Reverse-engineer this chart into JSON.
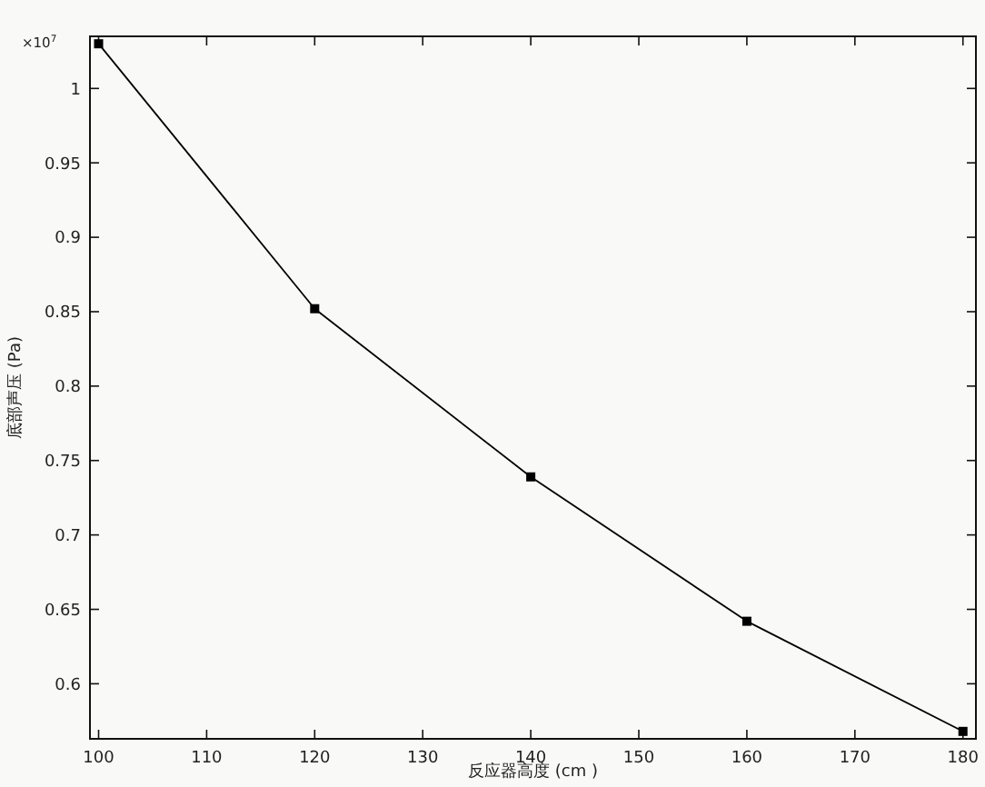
{
  "chart_data": {
    "type": "line",
    "xlabel": "反应器高度 (cm )",
    "ylabel": "底部声压 (Pa)",
    "annotations": [
      "×10$^{7}$"
    ],
    "x": [
      100,
      120,
      140,
      160,
      180
    ],
    "series": [
      {
        "color": "#000000",
        "values": [
          1.03,
          0.852,
          0.739,
          0.642,
          0.568
        ]
      }
    ],
    "xlim": [
      99.2,
      181.2
    ],
    "ylim": [
      0.563,
      1.035
    ],
    "xticks": [
      100,
      110,
      120,
      130,
      140,
      150,
      160,
      170,
      180
    ],
    "yticks": [
      0.6,
      0.65,
      0.7,
      0.75,
      0.8,
      0.85,
      0.9,
      0.95,
      1
    ],
    "marker": "square",
    "line_style": "solid",
    "grid": false
  }
}
